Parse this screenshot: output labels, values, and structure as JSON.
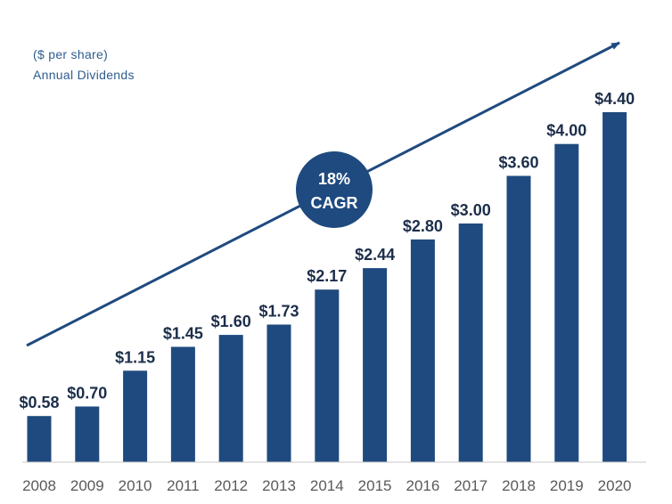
{
  "colors": {
    "bar": "#1f4a7f",
    "label": "#1c2e4a",
    "subtitle": "#2e5d8e",
    "tick": "#5a5a5a",
    "axis": "#c8c8c8",
    "badge_text": "#ffffff"
  },
  "chart_data": {
    "type": "bar",
    "subtitle_line1": "($ per share)",
    "subtitle_line2": "Annual Dividends",
    "categories": [
      "2008",
      "2009",
      "2010",
      "2011",
      "2012",
      "2013",
      "2014",
      "2015",
      "2016",
      "2017",
      "2018",
      "2019",
      "2020"
    ],
    "values": [
      0.58,
      0.7,
      1.15,
      1.45,
      1.6,
      1.73,
      2.17,
      2.44,
      2.8,
      3.0,
      3.6,
      4.0,
      4.4
    ],
    "value_labels": [
      "$0.58",
      "$0.70",
      "$1.15",
      "$1.45",
      "$1.60",
      "$1.73",
      "$2.17",
      "$2.44",
      "$2.80",
      "$3.00",
      "$3.60",
      "$4.00",
      "$4.40"
    ],
    "ylim": [
      0,
      4.4
    ],
    "annotation": {
      "line1": "18%",
      "line2": "CAGR"
    },
    "xlabel": "",
    "ylabel": ""
  }
}
